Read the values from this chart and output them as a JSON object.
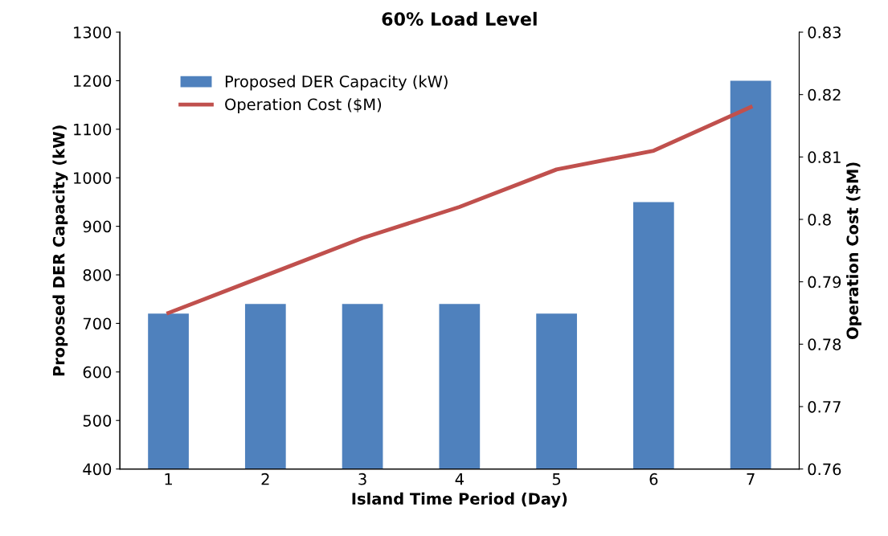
{
  "chart_data": {
    "type": "bar",
    "title": "60% Load Level",
    "xlabel": "Island Time Period (Day)",
    "ylabel": "Proposed DER Capacity (kW)",
    "y2label": "Operation Cost ($M)",
    "categories": [
      "1",
      "2",
      "3",
      "4",
      "5",
      "6",
      "7"
    ],
    "series": [
      {
        "name": "Proposed DER Capacity (kW)",
        "color": "#4f81bd",
        "values": [
          720,
          740,
          740,
          740,
          720,
          950,
          1200
        ]
      },
      {
        "name": "Operation Cost ($M)",
        "type": "line",
        "axis": "y2",
        "color": "#c0504d",
        "values": [
          0.785,
          0.791,
          0.797,
          0.802,
          0.808,
          0.811,
          0.818
        ]
      }
    ],
    "ylim": [
      400,
      1300
    ],
    "yticks": [
      400,
      500,
      600,
      700,
      800,
      900,
      1000,
      1100,
      1200,
      1300
    ],
    "y2lim": [
      0.76,
      0.83
    ],
    "y2ticks": [
      {
        "value": 0.76,
        "label": "0.76"
      },
      {
        "value": 0.77,
        "label": "0.77"
      },
      {
        "value": 0.78,
        "label": "0.78"
      },
      {
        "value": 0.79,
        "label": "0.79"
      },
      {
        "value": 0.8,
        "label": "0.8"
      },
      {
        "value": 0.81,
        "label": "0.81"
      },
      {
        "value": 0.82,
        "label": "0.82"
      },
      {
        "value": 0.83,
        "label": "0.83"
      }
    ],
    "legend": "top left",
    "grid": false,
    "marker": "none",
    "line_style": "solid"
  }
}
